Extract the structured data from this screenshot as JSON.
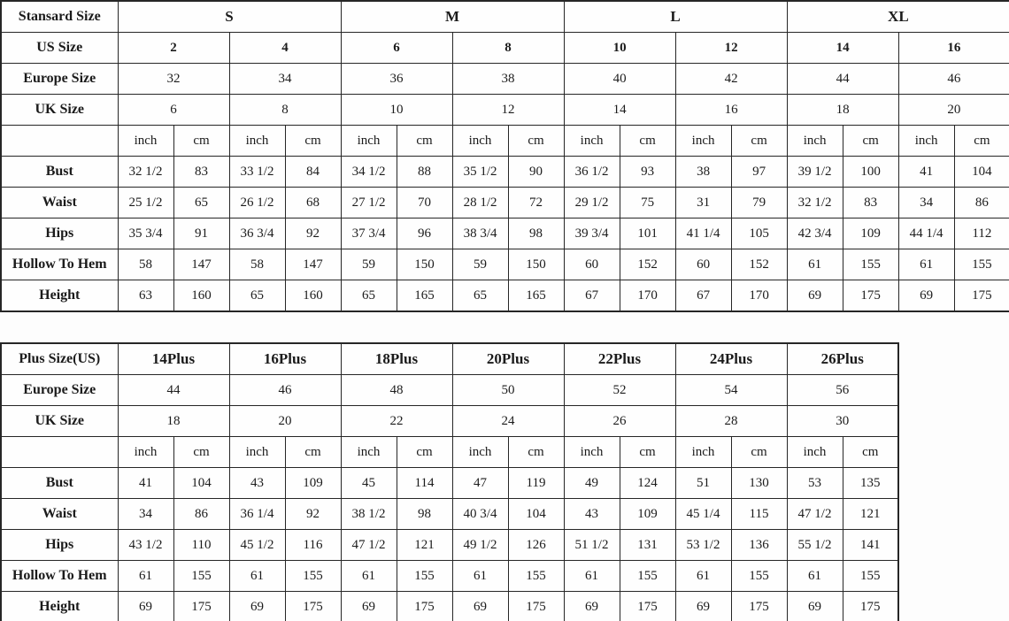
{
  "size_chart": {
    "standard_table": {
      "group_row": {
        "label": "Stansard Size",
        "groups": [
          "S",
          "M",
          "L",
          "XL"
        ]
      },
      "us_row": {
        "label": "US Size",
        "values": [
          "2",
          "4",
          "6",
          "8",
          "10",
          "12",
          "14",
          "16"
        ]
      },
      "europe_row": {
        "label": "Europe Size",
        "values": [
          "32",
          "34",
          "36",
          "38",
          "40",
          "42",
          "44",
          "46"
        ]
      },
      "uk_row": {
        "label": "UK Size",
        "values": [
          "6",
          "8",
          "10",
          "12",
          "14",
          "16",
          "18",
          "20"
        ]
      },
      "unit_row": {
        "label": "",
        "inch_label": "inch",
        "cm_label": "cm"
      },
      "measure_rows": [
        {
          "label": "Bust",
          "values": [
            "32 1/2",
            "83",
            "33 1/2",
            "84",
            "34 1/2",
            "88",
            "35 1/2",
            "90",
            "36 1/2",
            "93",
            "38",
            "97",
            "39 1/2",
            "100",
            "41",
            "104"
          ]
        },
        {
          "label": "Waist",
          "values": [
            "25 1/2",
            "65",
            "26 1/2",
            "68",
            "27 1/2",
            "70",
            "28 1/2",
            "72",
            "29 1/2",
            "75",
            "31",
            "79",
            "32 1/2",
            "83",
            "34",
            "86"
          ]
        },
        {
          "label": "Hips",
          "values": [
            "35 3/4",
            "91",
            "36 3/4",
            "92",
            "37 3/4",
            "96",
            "38 3/4",
            "98",
            "39 3/4",
            "101",
            "41 1/4",
            "105",
            "42 3/4",
            "109",
            "44 1/4",
            "112"
          ]
        },
        {
          "label": "Hollow To Hem",
          "values": [
            "58",
            "147",
            "58",
            "147",
            "59",
            "150",
            "59",
            "150",
            "60",
            "152",
            "60",
            "152",
            "61",
            "155",
            "61",
            "155"
          ]
        },
        {
          "label": "Height",
          "values": [
            "63",
            "160",
            "65",
            "160",
            "65",
            "165",
            "65",
            "165",
            "67",
            "170",
            "67",
            "170",
            "69",
            "175",
            "69",
            "175"
          ]
        }
      ]
    },
    "plus_table": {
      "group_row": {
        "label": "Plus Size(US)",
        "groups": [
          "14Plus",
          "16Plus",
          "18Plus",
          "20Plus",
          "22Plus",
          "24Plus",
          "26Plus"
        ]
      },
      "europe_row": {
        "label": "Europe Size",
        "values": [
          "44",
          "46",
          "48",
          "50",
          "52",
          "54",
          "56"
        ]
      },
      "uk_row": {
        "label": "UK Size",
        "values": [
          "18",
          "20",
          "22",
          "24",
          "26",
          "28",
          "30"
        ]
      },
      "unit_row": {
        "label": "",
        "inch_label": "inch",
        "cm_label": "cm"
      },
      "measure_rows": [
        {
          "label": "Bust",
          "values": [
            "41",
            "104",
            "43",
            "109",
            "45",
            "114",
            "47",
            "119",
            "49",
            "124",
            "51",
            "130",
            "53",
            "135"
          ]
        },
        {
          "label": "Waist",
          "values": [
            "34",
            "86",
            "36 1/4",
            "92",
            "38 1/2",
            "98",
            "40 3/4",
            "104",
            "43",
            "109",
            "45 1/4",
            "115",
            "47 1/2",
            "121"
          ]
        },
        {
          "label": "Hips",
          "values": [
            "43 1/2",
            "110",
            "45 1/2",
            "116",
            "47 1/2",
            "121",
            "49 1/2",
            "126",
            "51 1/2",
            "131",
            "53 1/2",
            "136",
            "55 1/2",
            "141"
          ]
        },
        {
          "label": "Hollow To Hem",
          "values": [
            "61",
            "155",
            "61",
            "155",
            "61",
            "155",
            "61",
            "155",
            "61",
            "155",
            "61",
            "155",
            "61",
            "155"
          ]
        },
        {
          "label": "Height",
          "values": [
            "69",
            "175",
            "69",
            "175",
            "69",
            "175",
            "69",
            "175",
            "69",
            "175",
            "69",
            "175",
            "69",
            "175"
          ]
        }
      ]
    },
    "colors": {
      "border": "#262626",
      "background": "#fdfdfd",
      "text": "#1b1b1b"
    }
  }
}
